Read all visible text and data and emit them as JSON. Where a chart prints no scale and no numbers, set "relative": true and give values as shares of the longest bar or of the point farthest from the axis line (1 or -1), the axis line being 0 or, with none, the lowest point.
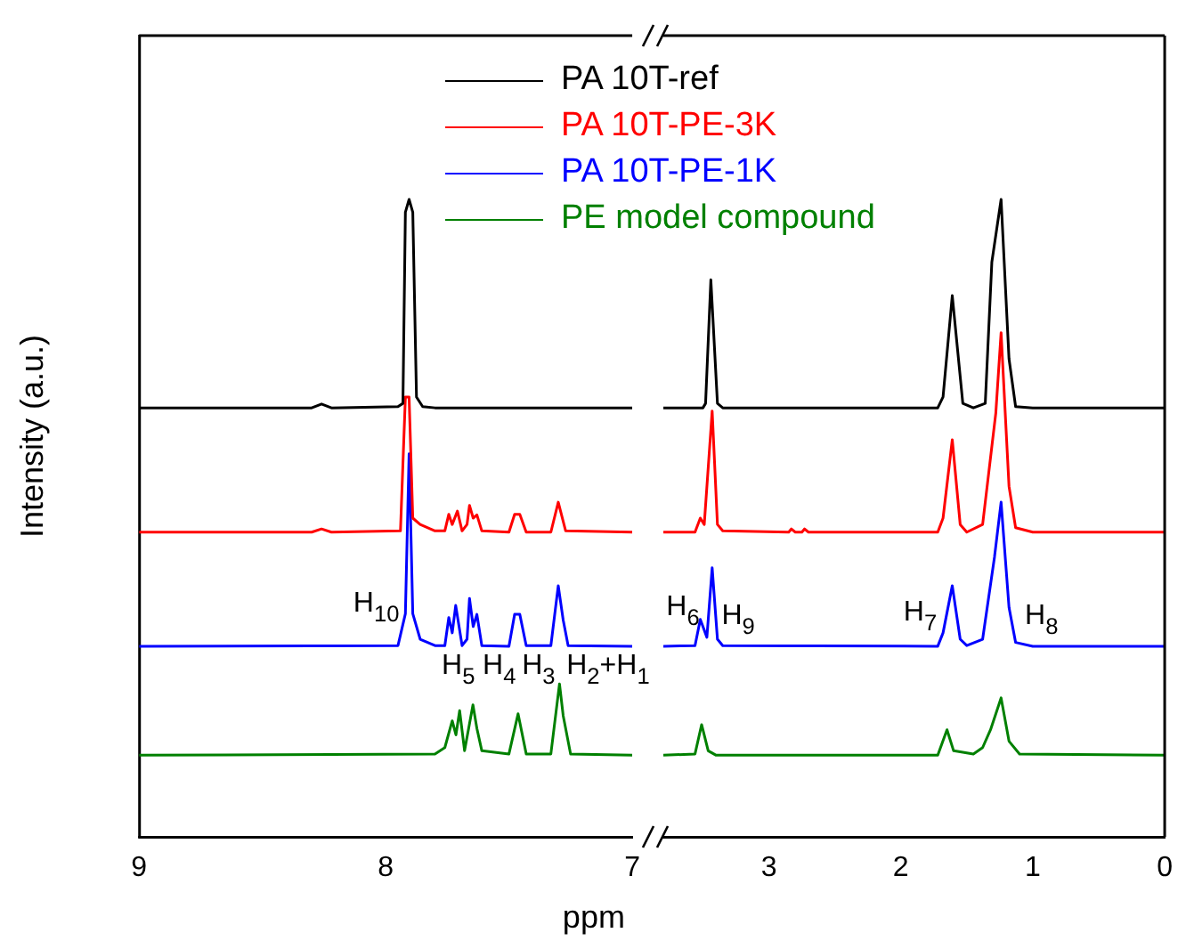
{
  "chart_data": [
    {
      "type": "line",
      "xlabel": "ppm",
      "ylabel": "Intensity (a.u.)",
      "relative": true,
      "xlim": [
        9,
        7
      ],
      "xticks": [
        9,
        8,
        7
      ],
      "grid": false,
      "legend": "top",
      "marker": "none",
      "line_style": "solid",
      "series": [
        {
          "name": "PA 10T-ref",
          "color": "#000000",
          "x": [
            9,
            8.3,
            8.26,
            8.22,
            7.95,
            7.93,
            7.92,
            7.905,
            7.89,
            7.875,
            7.85,
            7.8,
            7
          ],
          "values": [
            0.673,
            0.673,
            0.679,
            0.673,
            0.675,
            0.68,
            0.98,
            1,
            0.98,
            0.69,
            0.675,
            0.673,
            0.673
          ]
        },
        {
          "name": "PA 10T-PE-3K",
          "color": "#ff0000",
          "x": [
            9,
            8.3,
            8.26,
            8.22,
            7.94,
            7.92,
            7.905,
            7.89,
            7.86,
            7.8,
            7.76,
            7.744,
            7.73,
            7.709,
            7.69,
            7.67,
            7.66,
            7.645,
            7.63,
            7.61,
            7.5,
            7.477,
            7.456,
            7.43,
            7.33,
            7.3,
            7.27,
            7
          ],
          "values": [
            0.478,
            0.478,
            0.483,
            0.478,
            0.48,
            0.69,
            0.69,
            0.5,
            0.49,
            0.48,
            0.48,
            0.506,
            0.49,
            0.511,
            0.48,
            0.49,
            0.52,
            0.5,
            0.505,
            0.48,
            0.478,
            0.506,
            0.506,
            0.478,
            0.478,
            0.525,
            0.48,
            0.478
          ]
        },
        {
          "name": "PA 10T-PE-1K",
          "color": "#0000ff",
          "x": [
            9,
            7.95,
            7.92,
            7.905,
            7.89,
            7.86,
            7.8,
            7.76,
            7.744,
            7.73,
            7.716,
            7.69,
            7.67,
            7.66,
            7.645,
            7.63,
            7.61,
            7.5,
            7.477,
            7.456,
            7.43,
            7.33,
            7.3,
            7.28,
            7.26,
            7
          ],
          "values": [
            0.299,
            0.3,
            0.35,
            0.601,
            0.35,
            0.31,
            0.3,
            0.3,
            0.344,
            0.32,
            0.363,
            0.3,
            0.31,
            0.374,
            0.33,
            0.349,
            0.3,
            0.299,
            0.349,
            0.349,
            0.3,
            0.3,
            0.394,
            0.34,
            0.3,
            0.299
          ]
        },
        {
          "name": "PE model compound",
          "color": "#008000",
          "x": [
            9,
            7.8,
            7.76,
            7.73,
            7.715,
            7.7,
            7.68,
            7.646,
            7.63,
            7.61,
            7.5,
            7.463,
            7.43,
            7.33,
            7.295,
            7.28,
            7.25,
            7
          ],
          "values": [
            0.128,
            0.13,
            0.14,
            0.182,
            0.16,
            0.198,
            0.135,
            0.207,
            0.17,
            0.135,
            0.13,
            0.193,
            0.13,
            0.13,
            0.24,
            0.19,
            0.13,
            0.128
          ]
        }
      ],
      "annotations": [
        "H$_{10}$",
        "H$_{5}$",
        "H$_{4}$",
        "H$_{3}$",
        "H$_{2}$+H$_{1}$"
      ]
    },
    {
      "type": "line",
      "relative": true,
      "xlim": [
        3.8,
        0
      ],
      "xticks": [
        3,
        2,
        1,
        0
      ],
      "grid": false,
      "marker": "none",
      "line_style": "solid",
      "series": [
        {
          "color": "#000000",
          "x": [
            3.8,
            3.5,
            3.48,
            3.44,
            3.39,
            3.35,
            1.72,
            1.68,
            1.61,
            1.53,
            1.45,
            1.36,
            1.31,
            1.24,
            1.18,
            1.13,
            1,
            0
          ],
          "values": [
            0.673,
            0.673,
            0.68,
            0.874,
            0.68,
            0.673,
            0.673,
            0.69,
            0.849,
            0.68,
            0.673,
            0.68,
            0.902,
            1,
            0.75,
            0.675,
            0.673,
            0.673
          ]
        },
        {
          "color": "#ff0000",
          "x": [
            3.8,
            3.56,
            3.52,
            3.49,
            3.43,
            3.39,
            3.35,
            2.85,
            2.83,
            2.8,
            2.75,
            2.73,
            2.7,
            1.72,
            1.68,
            1.61,
            1.55,
            1.5,
            1.38,
            1.28,
            1.24,
            1.18,
            1.13,
            1,
            0
          ],
          "values": [
            0.478,
            0.478,
            0.5,
            0.49,
            0.668,
            0.49,
            0.48,
            0.478,
            0.483,
            0.478,
            0.478,
            0.483,
            0.478,
            0.478,
            0.5,
            0.623,
            0.49,
            0.478,
            0.49,
            0.665,
            0.791,
            0.55,
            0.485,
            0.478,
            0.478
          ]
        },
        {
          "color": "#0000ff",
          "x": [
            3.8,
            3.56,
            3.52,
            3.47,
            3.43,
            3.39,
            3.35,
            1.72,
            1.68,
            1.61,
            1.55,
            1.5,
            1.38,
            1.29,
            1.24,
            1.18,
            1.13,
            1,
            0
          ],
          "values": [
            0.299,
            0.3,
            0.341,
            0.313,
            0.422,
            0.31,
            0.3,
            0.299,
            0.32,
            0.394,
            0.31,
            0.3,
            0.31,
            0.439,
            0.525,
            0.36,
            0.305,
            0.299,
            0.299
          ]
        },
        {
          "color": "#008000",
          "x": [
            3.8,
            3.56,
            3.51,
            3.46,
            3.4,
            1.72,
            1.65,
            1.6,
            1.45,
            1.38,
            1.32,
            1.24,
            1.18,
            1.1,
            0
          ],
          "values": [
            0.128,
            0.13,
            0.176,
            0.135,
            0.128,
            0.128,
            0.168,
            0.135,
            0.13,
            0.14,
            0.168,
            0.218,
            0.15,
            0.13,
            0.128
          ]
        }
      ],
      "annotations": [
        "H$_{6}$",
        "H$_{9}$",
        "H$_{7}$",
        "H$_{8}$"
      ]
    }
  ]
}
